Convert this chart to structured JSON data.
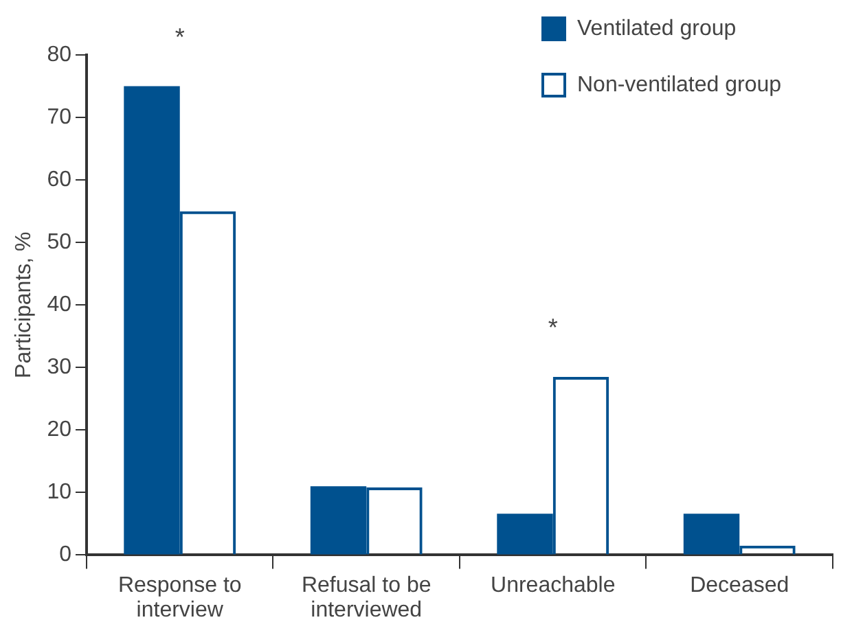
{
  "chart_data": {
    "type": "bar",
    "ylabel": "Participants, %",
    "categories": [
      "Response to interview",
      "Refusal to be interviewed",
      "Unreachable",
      "Deceased"
    ],
    "series": [
      {
        "name": "Ventilated group",
        "color": "#00518f",
        "values": [
          75,
          11,
          6.6,
          6.6
        ]
      },
      {
        "name": "Non-ventilated group",
        "color": "#00518f",
        "values": [
          55,
          10.8,
          28.5,
          1.5
        ]
      }
    ],
    "ylim": [
      0,
      80
    ],
    "yticks": [
      0,
      10,
      20,
      30,
      40,
      50,
      60,
      70,
      80
    ],
    "grid": false,
    "legend": "top right",
    "annotations": [
      {
        "text": "*",
        "x": "Response to interview",
        "y": 75
      },
      {
        "text": "*",
        "x": "Unreachable",
        "y": 28.5
      }
    ]
  }
}
